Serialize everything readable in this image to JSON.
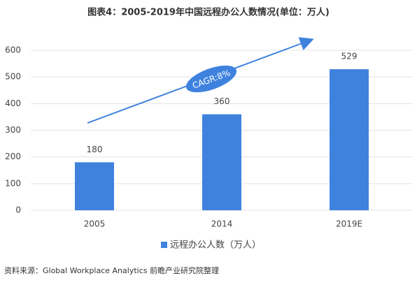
{
  "chart_data": {
    "type": "bar",
    "title": "图表4：2005-2019年中国远程办公人数情况(单位：万人)",
    "categories": [
      "2005",
      "2014",
      "2019E"
    ],
    "series": [
      {
        "name": "远程办公人数（万人）",
        "color": "#3f82de",
        "values": [
          180,
          360,
          529
        ]
      }
    ],
    "ylim": [
      0,
      600
    ],
    "yticks": [
      0,
      100,
      200,
      300,
      400,
      500,
      600
    ],
    "grid": true,
    "annotation": "CAGR:8%",
    "source": "资料来源：Global Workplace Analytics 前瞻产业研究院整理"
  }
}
